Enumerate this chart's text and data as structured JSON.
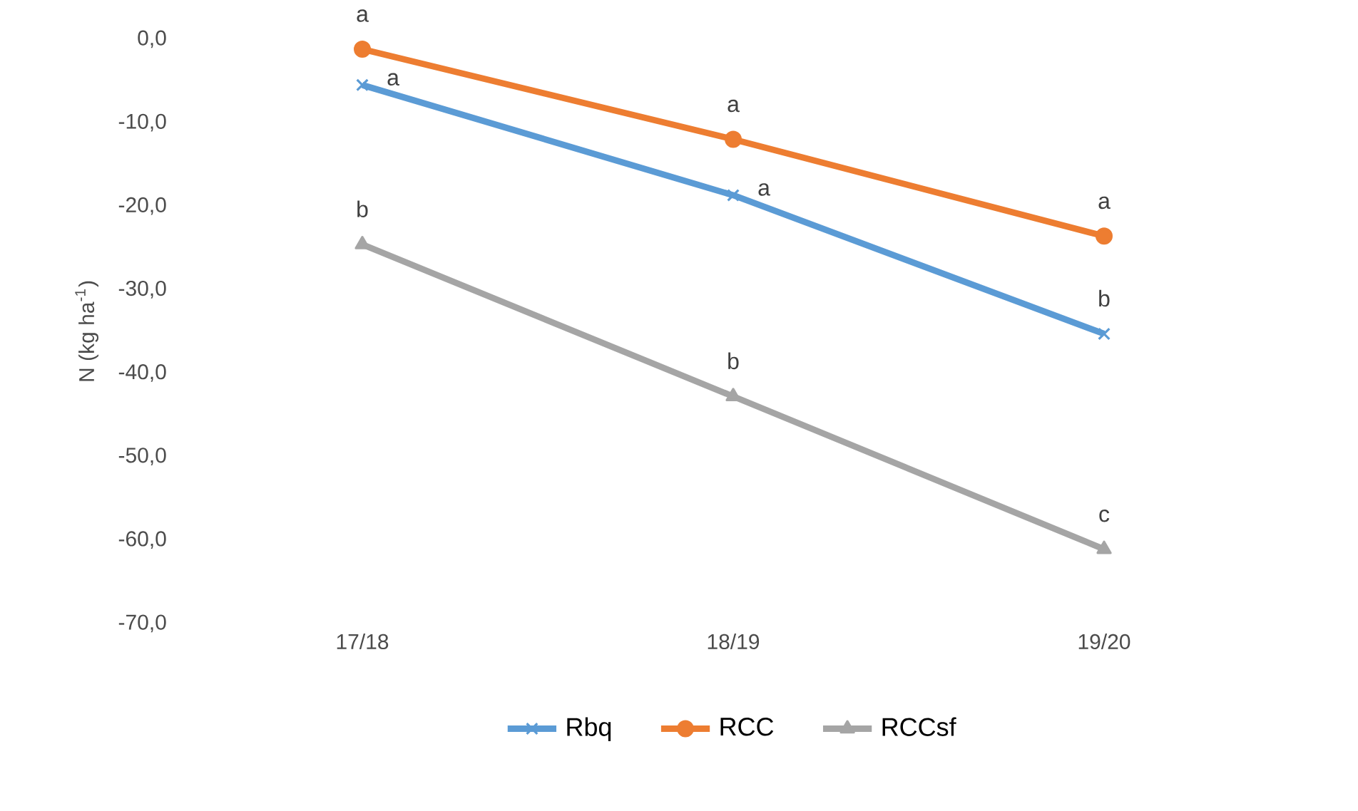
{
  "chart_data": {
    "type": "line",
    "ylabel": "N (kg ha$^{-1}$)",
    "categories": [
      "17/18",
      "18/19",
      "19/20"
    ],
    "series": [
      {
        "name": "Rbq",
        "color": "#5b9bd5",
        "marker": "cross",
        "values": [
          -5.5,
          -18.7,
          -35.3
        ]
      },
      {
        "name": "RCC",
        "color": "#ed7d31",
        "marker": "circle",
        "values": [
          -1.2,
          -12.0,
          -23.6
        ]
      },
      {
        "name": "RCCsf",
        "color": "#a5a5a5",
        "marker": "triangle",
        "values": [
          -24.6,
          -42.8,
          -61.1
        ]
      }
    ],
    "ylim": [
      -70,
      0
    ],
    "yticks": [
      {
        "value": -70,
        "label": "-70,0"
      },
      {
        "value": -60,
        "label": "-60,0"
      },
      {
        "value": -50,
        "label": "-50,0"
      },
      {
        "value": -40,
        "label": "-40,0"
      },
      {
        "value": -30,
        "label": "-30,0"
      },
      {
        "value": -20,
        "label": "-20,0"
      },
      {
        "value": -10,
        "label": "-10,0"
      },
      {
        "value": 0,
        "label": "0,0"
      }
    ],
    "legend": "bottom",
    "grid": false,
    "annotations": [
      {
        "text": "a",
        "x": "17/18",
        "y": -1.2
      },
      {
        "text": "a",
        "x": "17/18",
        "y": -5.5
      },
      {
        "text": "b",
        "x": "17/18",
        "y": -24.6
      },
      {
        "text": "a",
        "x": "18/19",
        "y": -12.0
      },
      {
        "text": "a",
        "x": "18/19",
        "y": -18.7
      },
      {
        "text": "b",
        "x": "18/19",
        "y": -42.8
      },
      {
        "text": "a",
        "x": "19/20",
        "y": -23.6
      },
      {
        "text": "b",
        "x": "19/20",
        "y": -35.3
      },
      {
        "text": "c",
        "x": "19/20",
        "y": -61.1
      }
    ]
  }
}
